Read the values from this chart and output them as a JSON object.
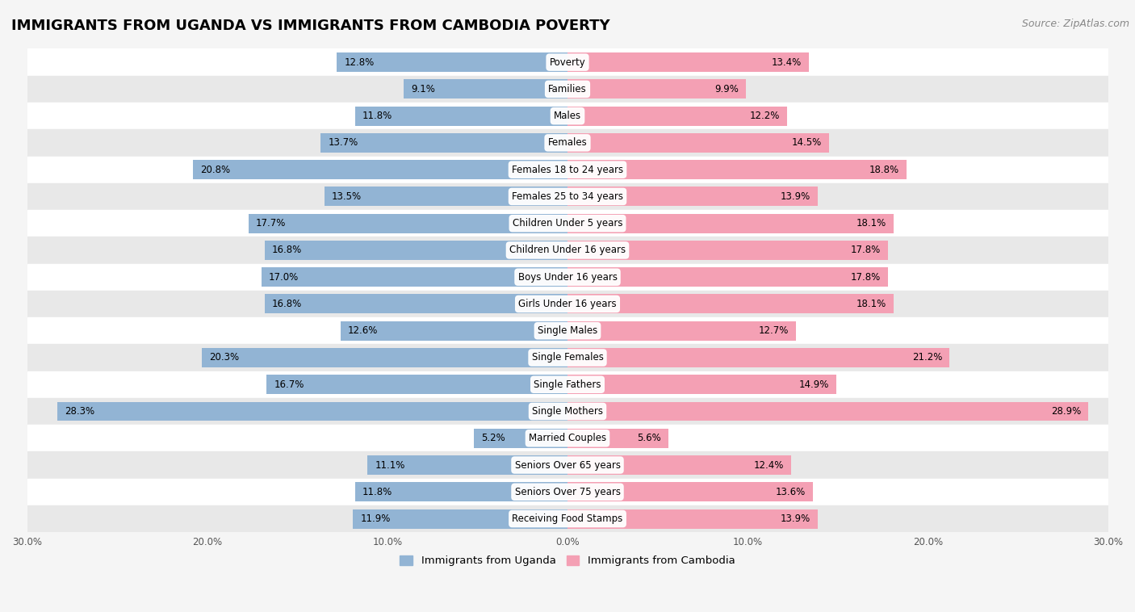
{
  "title": "IMMIGRANTS FROM UGANDA VS IMMIGRANTS FROM CAMBODIA POVERTY",
  "source": "Source: ZipAtlas.com",
  "categories": [
    "Poverty",
    "Families",
    "Males",
    "Females",
    "Females 18 to 24 years",
    "Females 25 to 34 years",
    "Children Under 5 years",
    "Children Under 16 years",
    "Boys Under 16 years",
    "Girls Under 16 years",
    "Single Males",
    "Single Females",
    "Single Fathers",
    "Single Mothers",
    "Married Couples",
    "Seniors Over 65 years",
    "Seniors Over 75 years",
    "Receiving Food Stamps"
  ],
  "uganda_values": [
    12.8,
    9.1,
    11.8,
    13.7,
    20.8,
    13.5,
    17.7,
    16.8,
    17.0,
    16.8,
    12.6,
    20.3,
    16.7,
    28.3,
    5.2,
    11.1,
    11.8,
    11.9
  ],
  "cambodia_values": [
    13.4,
    9.9,
    12.2,
    14.5,
    18.8,
    13.9,
    18.1,
    17.8,
    17.8,
    18.1,
    12.7,
    21.2,
    14.9,
    28.9,
    5.6,
    12.4,
    13.6,
    13.9
  ],
  "uganda_color": "#92b4d4",
  "cambodia_color": "#f4a0b4",
  "label_uganda": "Immigrants from Uganda",
  "label_cambodia": "Immigrants from Cambodia",
  "xlim": 30.0,
  "background_color": "#f5f5f5",
  "row_colors": [
    "#ffffff",
    "#e8e8e8"
  ],
  "bar_height": 0.72,
  "title_fontsize": 13,
  "source_fontsize": 9,
  "cat_fontsize": 8.5,
  "value_fontsize": 8.5
}
